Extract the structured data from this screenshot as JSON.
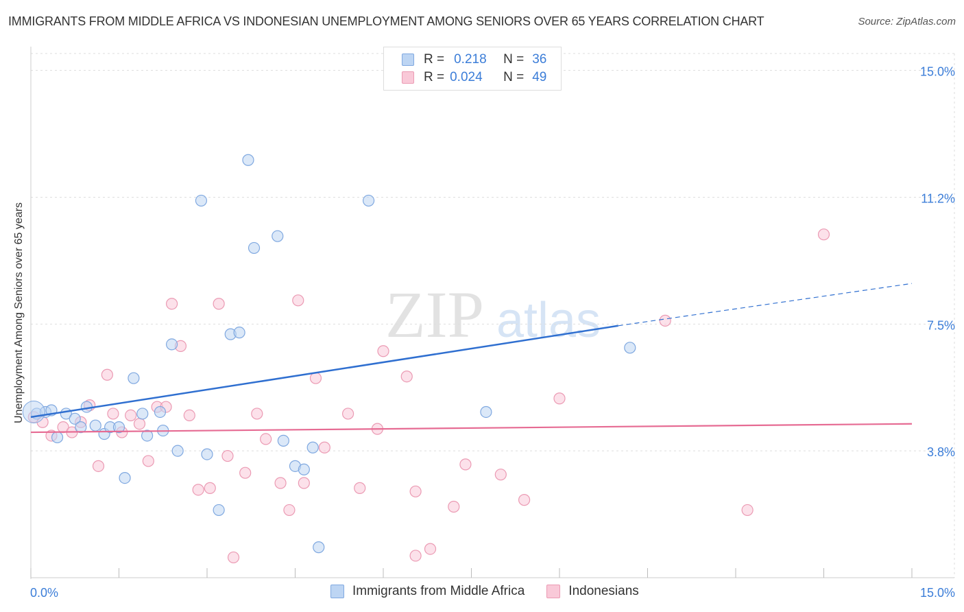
{
  "title": "IMMIGRANTS FROM MIDDLE AFRICA VS INDONESIAN UNEMPLOYMENT AMONG SENIORS OVER 65 YEARS CORRELATION CHART",
  "source": "Source: ZipAtlas.com",
  "watermark": {
    "zip": "ZIP",
    "atlas": "atlas"
  },
  "legend": {
    "series1": {
      "r_label": "R =",
      "r_value": "0.218",
      "n_label": "N =",
      "n_value": "36"
    },
    "series2": {
      "r_label": "R =",
      "r_value": "0.024",
      "n_label": "N =",
      "n_value": "49"
    }
  },
  "colors": {
    "blue_fill": "#bdd5f3",
    "blue_stroke": "#7fa8e0",
    "blue_line": "#2f6fd0",
    "pink_fill": "#f9c9d8",
    "pink_stroke": "#eb9ab3",
    "pink_line": "#e66b93",
    "tick_label": "#3b7dd8",
    "grid": "#dddddd"
  },
  "chart_data": {
    "type": "scatter",
    "title": "IMMIGRANTS FROM MIDDLE AFRICA VS INDONESIAN UNEMPLOYMENT AMONG SENIORS OVER 65 YEARS CORRELATION CHART",
    "xlabel": "",
    "ylabel": "Unemployment Among Seniors over 65 years",
    "xlim": [
      0,
      15
    ],
    "ylim": [
      0,
      15.5
    ],
    "x_tick_labels": [
      "0.0%",
      "15.0%"
    ],
    "y_ticks": [
      3.75,
      7.5,
      11.25,
      15.0
    ],
    "y_tick_labels": [
      "3.8%",
      "7.5%",
      "11.2%",
      "15.0%"
    ],
    "legend_position": "top-center",
    "series": [
      {
        "name": "Immigrants from Middle Africa",
        "color": "blue",
        "r": 0.218,
        "n": 36,
        "trend": {
          "x0": 0.0,
          "y0": 4.75,
          "x1": 10.0,
          "y1": 7.45,
          "dashed_to_x": 15.0,
          "dashed_to_y": 8.7
        },
        "points": [
          [
            0.1,
            4.85
          ],
          [
            0.25,
            4.9
          ],
          [
            0.35,
            4.95
          ],
          [
            0.45,
            4.15
          ],
          [
            0.6,
            4.85
          ],
          [
            0.75,
            4.7
          ],
          [
            0.85,
            4.45
          ],
          [
            0.95,
            5.05
          ],
          [
            1.1,
            4.5
          ],
          [
            1.25,
            4.25
          ],
          [
            1.35,
            4.45
          ],
          [
            1.5,
            4.45
          ],
          [
            1.6,
            2.95
          ],
          [
            1.75,
            5.9
          ],
          [
            1.9,
            4.85
          ],
          [
            1.98,
            4.2
          ],
          [
            2.2,
            4.9
          ],
          [
            2.25,
            4.35
          ],
          [
            2.4,
            6.9
          ],
          [
            2.5,
            3.75
          ],
          [
            2.9,
            11.15
          ],
          [
            3.0,
            3.65
          ],
          [
            3.2,
            2.0
          ],
          [
            3.4,
            7.2
          ],
          [
            3.55,
            7.25
          ],
          [
            3.7,
            12.35
          ],
          [
            3.8,
            9.75
          ],
          [
            4.2,
            10.1
          ],
          [
            4.3,
            4.05
          ],
          [
            4.5,
            3.3
          ],
          [
            4.65,
            3.2
          ],
          [
            4.8,
            3.85
          ],
          [
            4.9,
            0.9
          ],
          [
            5.75,
            11.15
          ],
          [
            7.75,
            4.9
          ],
          [
            10.2,
            6.8
          ]
        ]
      },
      {
        "name": "Indonesians",
        "color": "pink",
        "r": 0.024,
        "n": 49,
        "trend": {
          "x0": 0.0,
          "y0": 4.3,
          "x1": 15.0,
          "y1": 4.55
        },
        "points": [
          [
            0.05,
            4.75
          ],
          [
            0.2,
            4.6
          ],
          [
            0.35,
            4.2
          ],
          [
            0.55,
            4.45
          ],
          [
            0.7,
            4.3
          ],
          [
            0.85,
            4.6
          ],
          [
            1.0,
            5.1
          ],
          [
            1.15,
            3.3
          ],
          [
            1.3,
            6.0
          ],
          [
            1.4,
            4.85
          ],
          [
            1.55,
            4.3
          ],
          [
            1.7,
            4.8
          ],
          [
            1.85,
            4.55
          ],
          [
            2.0,
            3.45
          ],
          [
            2.15,
            5.05
          ],
          [
            2.3,
            5.05
          ],
          [
            2.4,
            8.1
          ],
          [
            2.55,
            6.85
          ],
          [
            2.7,
            4.8
          ],
          [
            2.85,
            2.6
          ],
          [
            3.05,
            2.65
          ],
          [
            3.2,
            8.1
          ],
          [
            3.35,
            3.6
          ],
          [
            3.45,
            0.6
          ],
          [
            3.65,
            3.1
          ],
          [
            3.85,
            4.85
          ],
          [
            4.0,
            4.1
          ],
          [
            4.25,
            2.8
          ],
          [
            4.4,
            2.0
          ],
          [
            4.55,
            8.2
          ],
          [
            4.65,
            2.8
          ],
          [
            4.85,
            5.9
          ],
          [
            5.0,
            3.85
          ],
          [
            5.4,
            4.85
          ],
          [
            5.6,
            2.65
          ],
          [
            5.9,
            4.4
          ],
          [
            6.0,
            6.7
          ],
          [
            6.4,
            5.95
          ],
          [
            6.55,
            2.55
          ],
          [
            6.55,
            0.65
          ],
          [
            6.8,
            0.85
          ],
          [
            7.2,
            2.1
          ],
          [
            7.4,
            3.35
          ],
          [
            8.0,
            3.05
          ],
          [
            8.4,
            2.3
          ],
          [
            9.0,
            5.3
          ],
          [
            10.8,
            7.6
          ],
          [
            12.2,
            2.0
          ],
          [
            13.5,
            10.15
          ]
        ]
      }
    ]
  },
  "bottom_legend": {
    "series1": "Immigrants from Middle Africa",
    "series2": "Indonesians"
  }
}
